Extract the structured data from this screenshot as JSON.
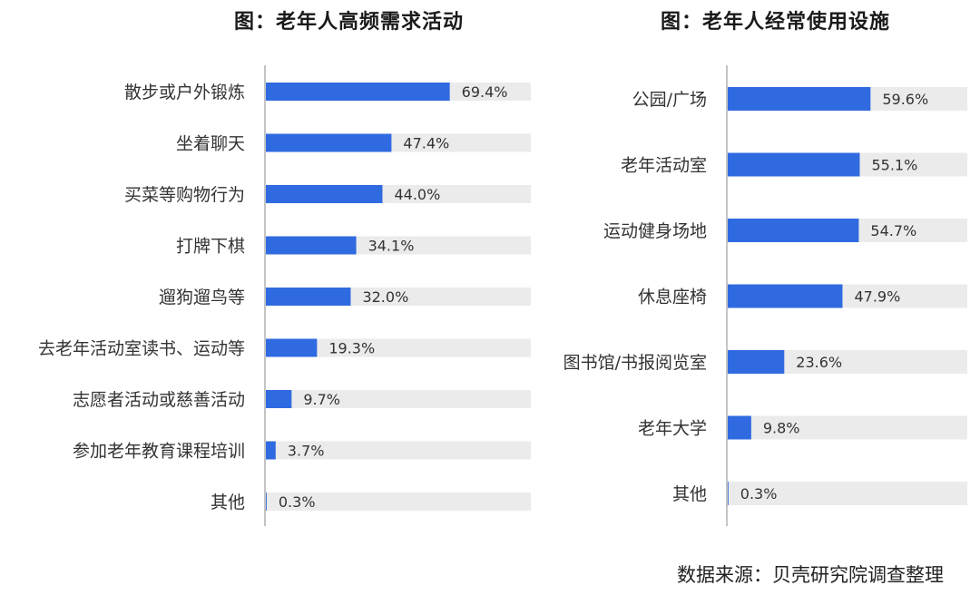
{
  "chart_data": [
    {
      "type": "bar",
      "orientation": "horizontal",
      "title": "图：老年人高频需求活动",
      "categories": [
        "散步或户外锻炼",
        "坐着聊天",
        "买菜等购物行为",
        "打牌下棋",
        "遛狗遛鸟等",
        "去老年活动室读书、运动等",
        "志愿者活动或慈善活动",
        "参加老年教育课程培训",
        "其他"
      ],
      "values": [
        69.4,
        47.4,
        44.0,
        34.1,
        32.0,
        19.3,
        9.7,
        3.7,
        0.3
      ],
      "labels": [
        "69.4%",
        "47.4%",
        "44.0%",
        "34.1%",
        "32.0%",
        "19.3%",
        "9.7%",
        "3.7%",
        "0.3%"
      ],
      "xlim": [
        0,
        100
      ],
      "grid": false
    },
    {
      "type": "bar",
      "orientation": "horizontal",
      "title": "图：老年人经常使用设施",
      "categories": [
        "公园/广场",
        "老年活动室",
        "运动健身场地",
        "休息座椅",
        "图书馆/书报阅览室",
        "老年大学",
        "其他"
      ],
      "values": [
        59.6,
        55.1,
        54.7,
        47.9,
        23.6,
        9.8,
        0.3
      ],
      "labels": [
        "59.6%",
        "55.1%",
        "54.7%",
        "47.9%",
        "23.6%",
        "9.8%",
        "0.3%"
      ],
      "xlim": [
        0,
        100
      ],
      "grid": false
    }
  ],
  "source_text": "数据来源：贝壳研究院调查整理",
  "colors": {
    "bar": "#2f6ae0",
    "track": "#ebebeb",
    "axis": "#c4c4c4",
    "text": "#333333"
  }
}
